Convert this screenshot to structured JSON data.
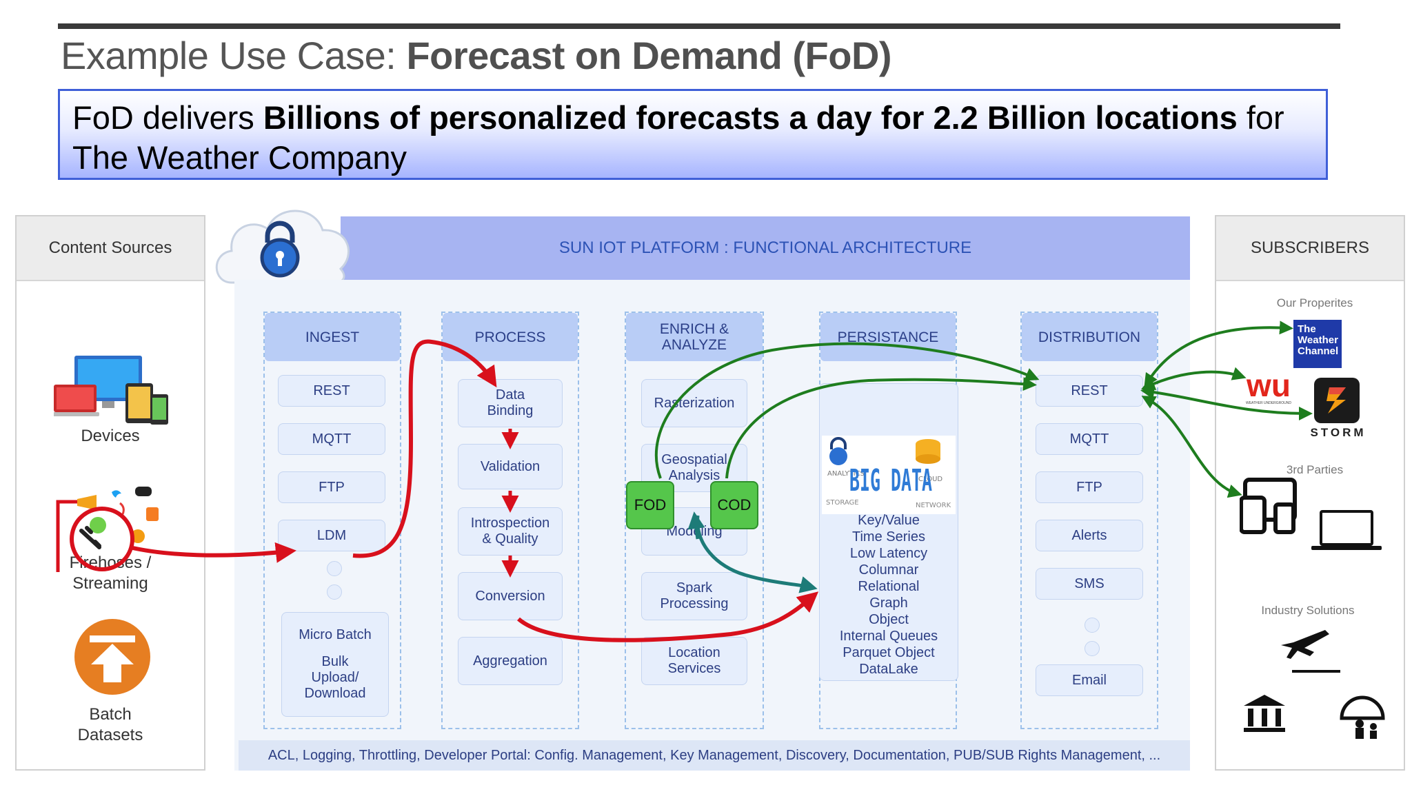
{
  "header": {
    "title_plain": "Example  Use Case: ",
    "title_bold": "Forecast  on Demand  (FoD)"
  },
  "banner": {
    "text_pre": "FoD delivers ",
    "text_bold": "Billions of personalized forecasts a day for 2.2 Billion locations",
    "text_post": " for The Weather Company"
  },
  "content_sources": {
    "title": "Content Sources",
    "devices_label": "Devices",
    "streaming_line1": "Firehoses /",
    "streaming_line2": "Streaming",
    "batch_line1": "Batch",
    "batch_line2": "Datasets"
  },
  "platform": {
    "title": "SUN IOT PLATFORM : FUNCTIONAL ARCHITECTURE",
    "footer": "ACL, Logging, Throttling, Developer Portal: Config. Management, Key Management, Discovery, Documentation, PUB/SUB Rights Management, ..."
  },
  "columns": {
    "ingest": {
      "title": "INGEST",
      "items": [
        "REST",
        "MQTT",
        "FTP",
        "LDM"
      ],
      "batch_lines": [
        "Micro Batch",
        "",
        "Bulk",
        "Upload/",
        "Download"
      ]
    },
    "process": {
      "title": "PROCESS",
      "items": [
        "Data\nBinding",
        "Validation",
        "Introspection\n& Quality",
        "Conversion",
        "Aggregation"
      ]
    },
    "enrich": {
      "title": "ENRICH &\nANALYZE",
      "items": [
        "Rasterization",
        "Geospatial\nAnalysis",
        "Modeling",
        "Spark\nProcessing",
        "Location\nServices"
      ],
      "fod": "FOD",
      "cod": "COD"
    },
    "persistance": {
      "title": "PERSISTANCE",
      "big_data": "BIG DATA",
      "stores": [
        "Key/Value",
        "Time Series",
        "Low Latency",
        "Columnar",
        "Relational",
        "Graph",
        "Object",
        "Internal Queues",
        "Parquet Object",
        "DataLake"
      ]
    },
    "distribution": {
      "title": "DISTRIBUTION",
      "items": [
        "REST",
        "MQTT",
        "FTP",
        "Alerts",
        "SMS",
        "Email"
      ]
    }
  },
  "subscribers": {
    "title": "SUBSCRIBERS",
    "our_properties": "Our Properites",
    "twc_logo": "The\nWeather\nChannel",
    "wu_logo": "wu",
    "wu_caption": "WEATHER UNDERGROUND",
    "storm_logo": "STORM",
    "third_parties": "3rd Parties",
    "industry": "Industry Solutions"
  },
  "colors": {
    "red_arrow": "#d8101c",
    "green_arrow": "#1e7d1e",
    "teal_arrow": "#1d7b78",
    "platform_bar": "#a7b4f2",
    "column_head": "#b9cdf6"
  }
}
